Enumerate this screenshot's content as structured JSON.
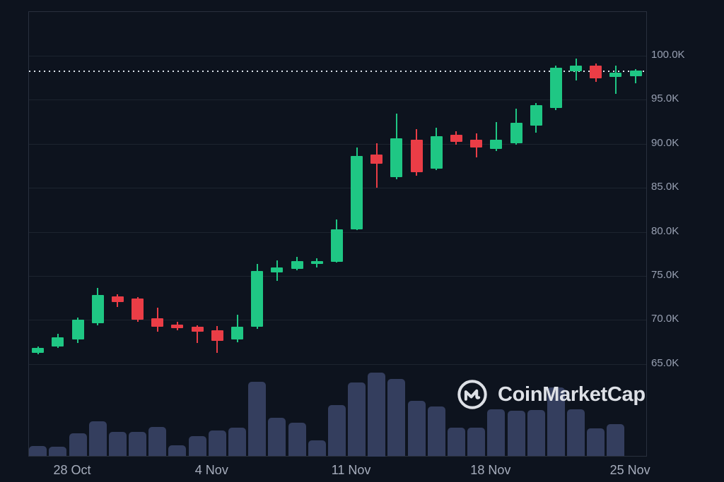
{
  "watermark": {
    "text": "CoinMarketCap"
  },
  "colors": {
    "background": "#0d131e",
    "up": "#1fc784",
    "down": "#ea3d46",
    "volume_bar": "#343e5e",
    "grid": "rgba(170,185,210,0.10)",
    "pane_border": "rgba(170,185,210,0.18)",
    "y_axis_text": "#98a0b2",
    "x_axis_text": "#a6adbc",
    "dotted_price_line": "#dde4ec",
    "watermark_text": "#dde0e6"
  },
  "chart_data": {
    "type": "candlestick",
    "title": "",
    "xlabel": "",
    "ylabel": "",
    "unit": "USD thousands (K)",
    "grid": "horizontal-only",
    "legend": "none",
    "ylim": [
      65,
      100
    ],
    "current_price_dotted_line": 98.2,
    "y_axis_ticks": [
      {
        "label": "100.0K",
        "value": 100.0
      },
      {
        "label": "95.0K",
        "value": 95.0
      },
      {
        "label": "90.0K",
        "value": 90.0
      },
      {
        "label": "85.0K",
        "value": 85.0
      },
      {
        "label": "80.0K",
        "value": 80.0
      },
      {
        "label": "75.0K",
        "value": 75.0
      },
      {
        "label": "70.0K",
        "value": 70.0
      },
      {
        "label": "65.0K",
        "value": 65.0
      }
    ],
    "x_axis_ticks": [
      {
        "label": "28 Oct",
        "index": 2
      },
      {
        "label": "4 Nov",
        "index": 9
      },
      {
        "label": "11 Nov",
        "index": 16
      },
      {
        "label": "18 Nov",
        "index": 23
      },
      {
        "label": "25 Nov",
        "index": 30
      }
    ],
    "candles": [
      {
        "date": "26 Oct",
        "open": 66.3,
        "high": 67.0,
        "low": 66.1,
        "close": 66.8
      },
      {
        "date": "27 Oct",
        "open": 67.0,
        "high": 68.4,
        "low": 66.8,
        "close": 68.0
      },
      {
        "date": "28 Oct",
        "open": 67.8,
        "high": 70.3,
        "low": 67.4,
        "close": 70.0
      },
      {
        "date": "29 Oct",
        "open": 69.6,
        "high": 73.6,
        "low": 69.4,
        "close": 72.8
      },
      {
        "date": "30 Oct",
        "open": 72.7,
        "high": 72.9,
        "low": 71.5,
        "close": 72.0
      },
      {
        "date": "31 Oct",
        "open": 72.4,
        "high": 72.6,
        "low": 69.8,
        "close": 70.0
      },
      {
        "date": "1 Nov",
        "open": 70.2,
        "high": 71.4,
        "low": 68.7,
        "close": 69.2
      },
      {
        "date": "2 Nov",
        "open": 69.5,
        "high": 69.8,
        "low": 68.8,
        "close": 69.1
      },
      {
        "date": "3 Nov",
        "open": 69.2,
        "high": 69.4,
        "low": 67.4,
        "close": 68.7
      },
      {
        "date": "4 Nov",
        "open": 68.8,
        "high": 69.3,
        "low": 66.3,
        "close": 67.6
      },
      {
        "date": "5 Nov",
        "open": 67.8,
        "high": 70.6,
        "low": 67.5,
        "close": 69.2
      },
      {
        "date": "6 Nov",
        "open": 69.2,
        "high": 76.4,
        "low": 69.0,
        "close": 75.6
      },
      {
        "date": "7 Nov",
        "open": 75.4,
        "high": 76.8,
        "low": 74.4,
        "close": 76.0
      },
      {
        "date": "8 Nov",
        "open": 75.8,
        "high": 77.2,
        "low": 75.6,
        "close": 76.7
      },
      {
        "date": "9 Nov",
        "open": 76.4,
        "high": 77.0,
        "low": 76.0,
        "close": 76.7
      },
      {
        "date": "10 Nov",
        "open": 76.6,
        "high": 81.4,
        "low": 76.5,
        "close": 80.3
      },
      {
        "date": "11 Nov",
        "open": 80.3,
        "high": 89.6,
        "low": 80.2,
        "close": 88.6
      },
      {
        "date": "12 Nov",
        "open": 88.8,
        "high": 90.1,
        "low": 85.0,
        "close": 87.7
      },
      {
        "date": "13 Nov",
        "open": 86.2,
        "high": 93.4,
        "low": 86.0,
        "close": 90.6
      },
      {
        "date": "14 Nov",
        "open": 90.5,
        "high": 91.7,
        "low": 86.4,
        "close": 86.8
      },
      {
        "date": "15 Nov",
        "open": 87.2,
        "high": 91.8,
        "low": 87.0,
        "close": 90.9
      },
      {
        "date": "16 Nov",
        "open": 91.0,
        "high": 91.4,
        "low": 89.9,
        "close": 90.2
      },
      {
        "date": "17 Nov",
        "open": 90.5,
        "high": 91.2,
        "low": 88.5,
        "close": 89.6
      },
      {
        "date": "18 Nov",
        "open": 89.4,
        "high": 92.5,
        "low": 89.2,
        "close": 90.5
      },
      {
        "date": "19 Nov",
        "open": 90.1,
        "high": 94.0,
        "low": 89.9,
        "close": 92.4
      },
      {
        "date": "20 Nov",
        "open": 92.1,
        "high": 94.6,
        "low": 91.3,
        "close": 94.4
      },
      {
        "date": "21 Nov",
        "open": 94.1,
        "high": 98.9,
        "low": 93.8,
        "close": 98.6
      },
      {
        "date": "22 Nov",
        "open": 98.2,
        "high": 99.7,
        "low": 97.2,
        "close": 98.9
      },
      {
        "date": "23 Nov",
        "open": 98.9,
        "high": 99.1,
        "low": 97.0,
        "close": 97.4
      },
      {
        "date": "24 Nov",
        "open": 97.6,
        "high": 98.9,
        "low": 95.7,
        "close": 98.1
      },
      {
        "date": "25 Nov",
        "open": 97.7,
        "high": 98.5,
        "low": 96.9,
        "close": 98.3
      }
    ],
    "volume_relative": [
      0.12,
      0.11,
      0.27,
      0.42,
      0.29,
      0.29,
      0.35,
      0.13,
      0.24,
      0.31,
      0.34,
      0.89,
      0.46,
      0.4,
      0.19,
      0.61,
      0.88,
      1.0,
      0.92,
      0.66,
      0.59,
      0.34,
      0.34,
      0.56,
      0.54,
      0.55,
      0.82,
      0.56,
      0.33,
      0.38,
      0
    ]
  }
}
